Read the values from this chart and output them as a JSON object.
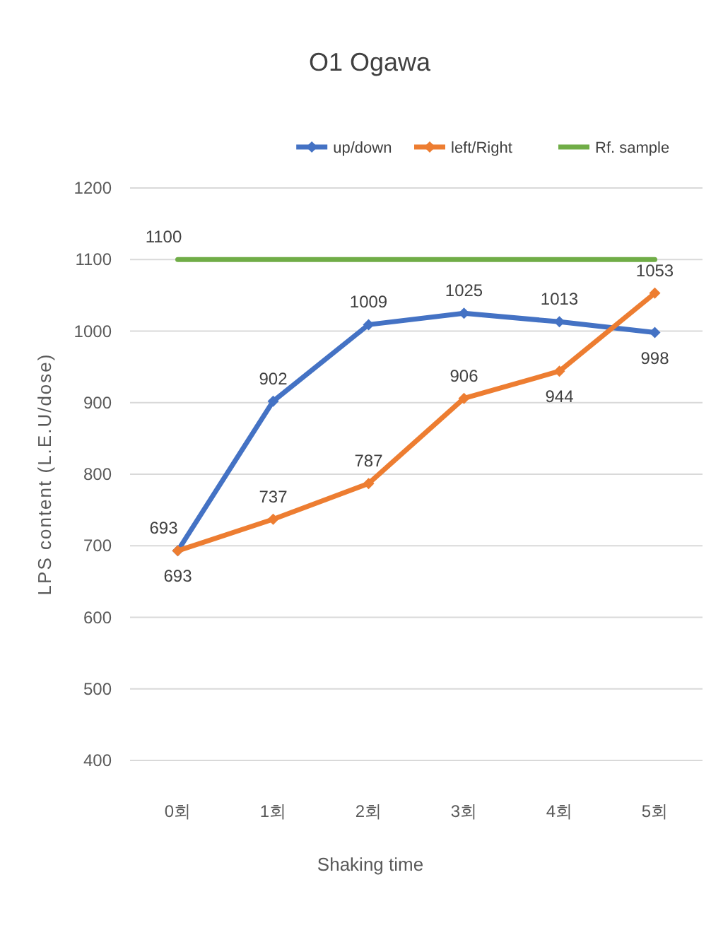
{
  "chart_data": {
    "type": "line",
    "title": "O1 Ogawa",
    "xlabel": "Shaking time",
    "ylabel": "LPS content (L.E.U/dose)",
    "categories": [
      "0회",
      "1회",
      "2회",
      "3회",
      "4회",
      "5회"
    ],
    "series": [
      {
        "name": "up/down",
        "color": "#4472c4",
        "values": [
          693,
          902,
          1009,
          1025,
          1013,
          998
        ],
        "marker": "diamond",
        "value_labels": [
          "693",
          "902",
          "1009",
          "1025",
          "1013",
          "998"
        ]
      },
      {
        "name": "left/Right",
        "color": "#ed7d31",
        "values": [
          693,
          737,
          787,
          906,
          944,
          1053
        ],
        "marker": "diamond",
        "value_labels": [
          "693",
          "737",
          "787",
          "906",
          "944",
          "1053"
        ]
      },
      {
        "name": "Rf. sample",
        "color": "#70ad47",
        "values": [
          1100,
          1100,
          1100,
          1100,
          1100,
          1100
        ],
        "value_labels": [
          "1100",
          null,
          null,
          null,
          null,
          null
        ]
      }
    ],
    "ylim": [
      400,
      1200
    ],
    "yticks": [
      400,
      500,
      600,
      700,
      800,
      900,
      1000,
      1100,
      1200
    ],
    "grid": "y",
    "legend": "top right"
  }
}
